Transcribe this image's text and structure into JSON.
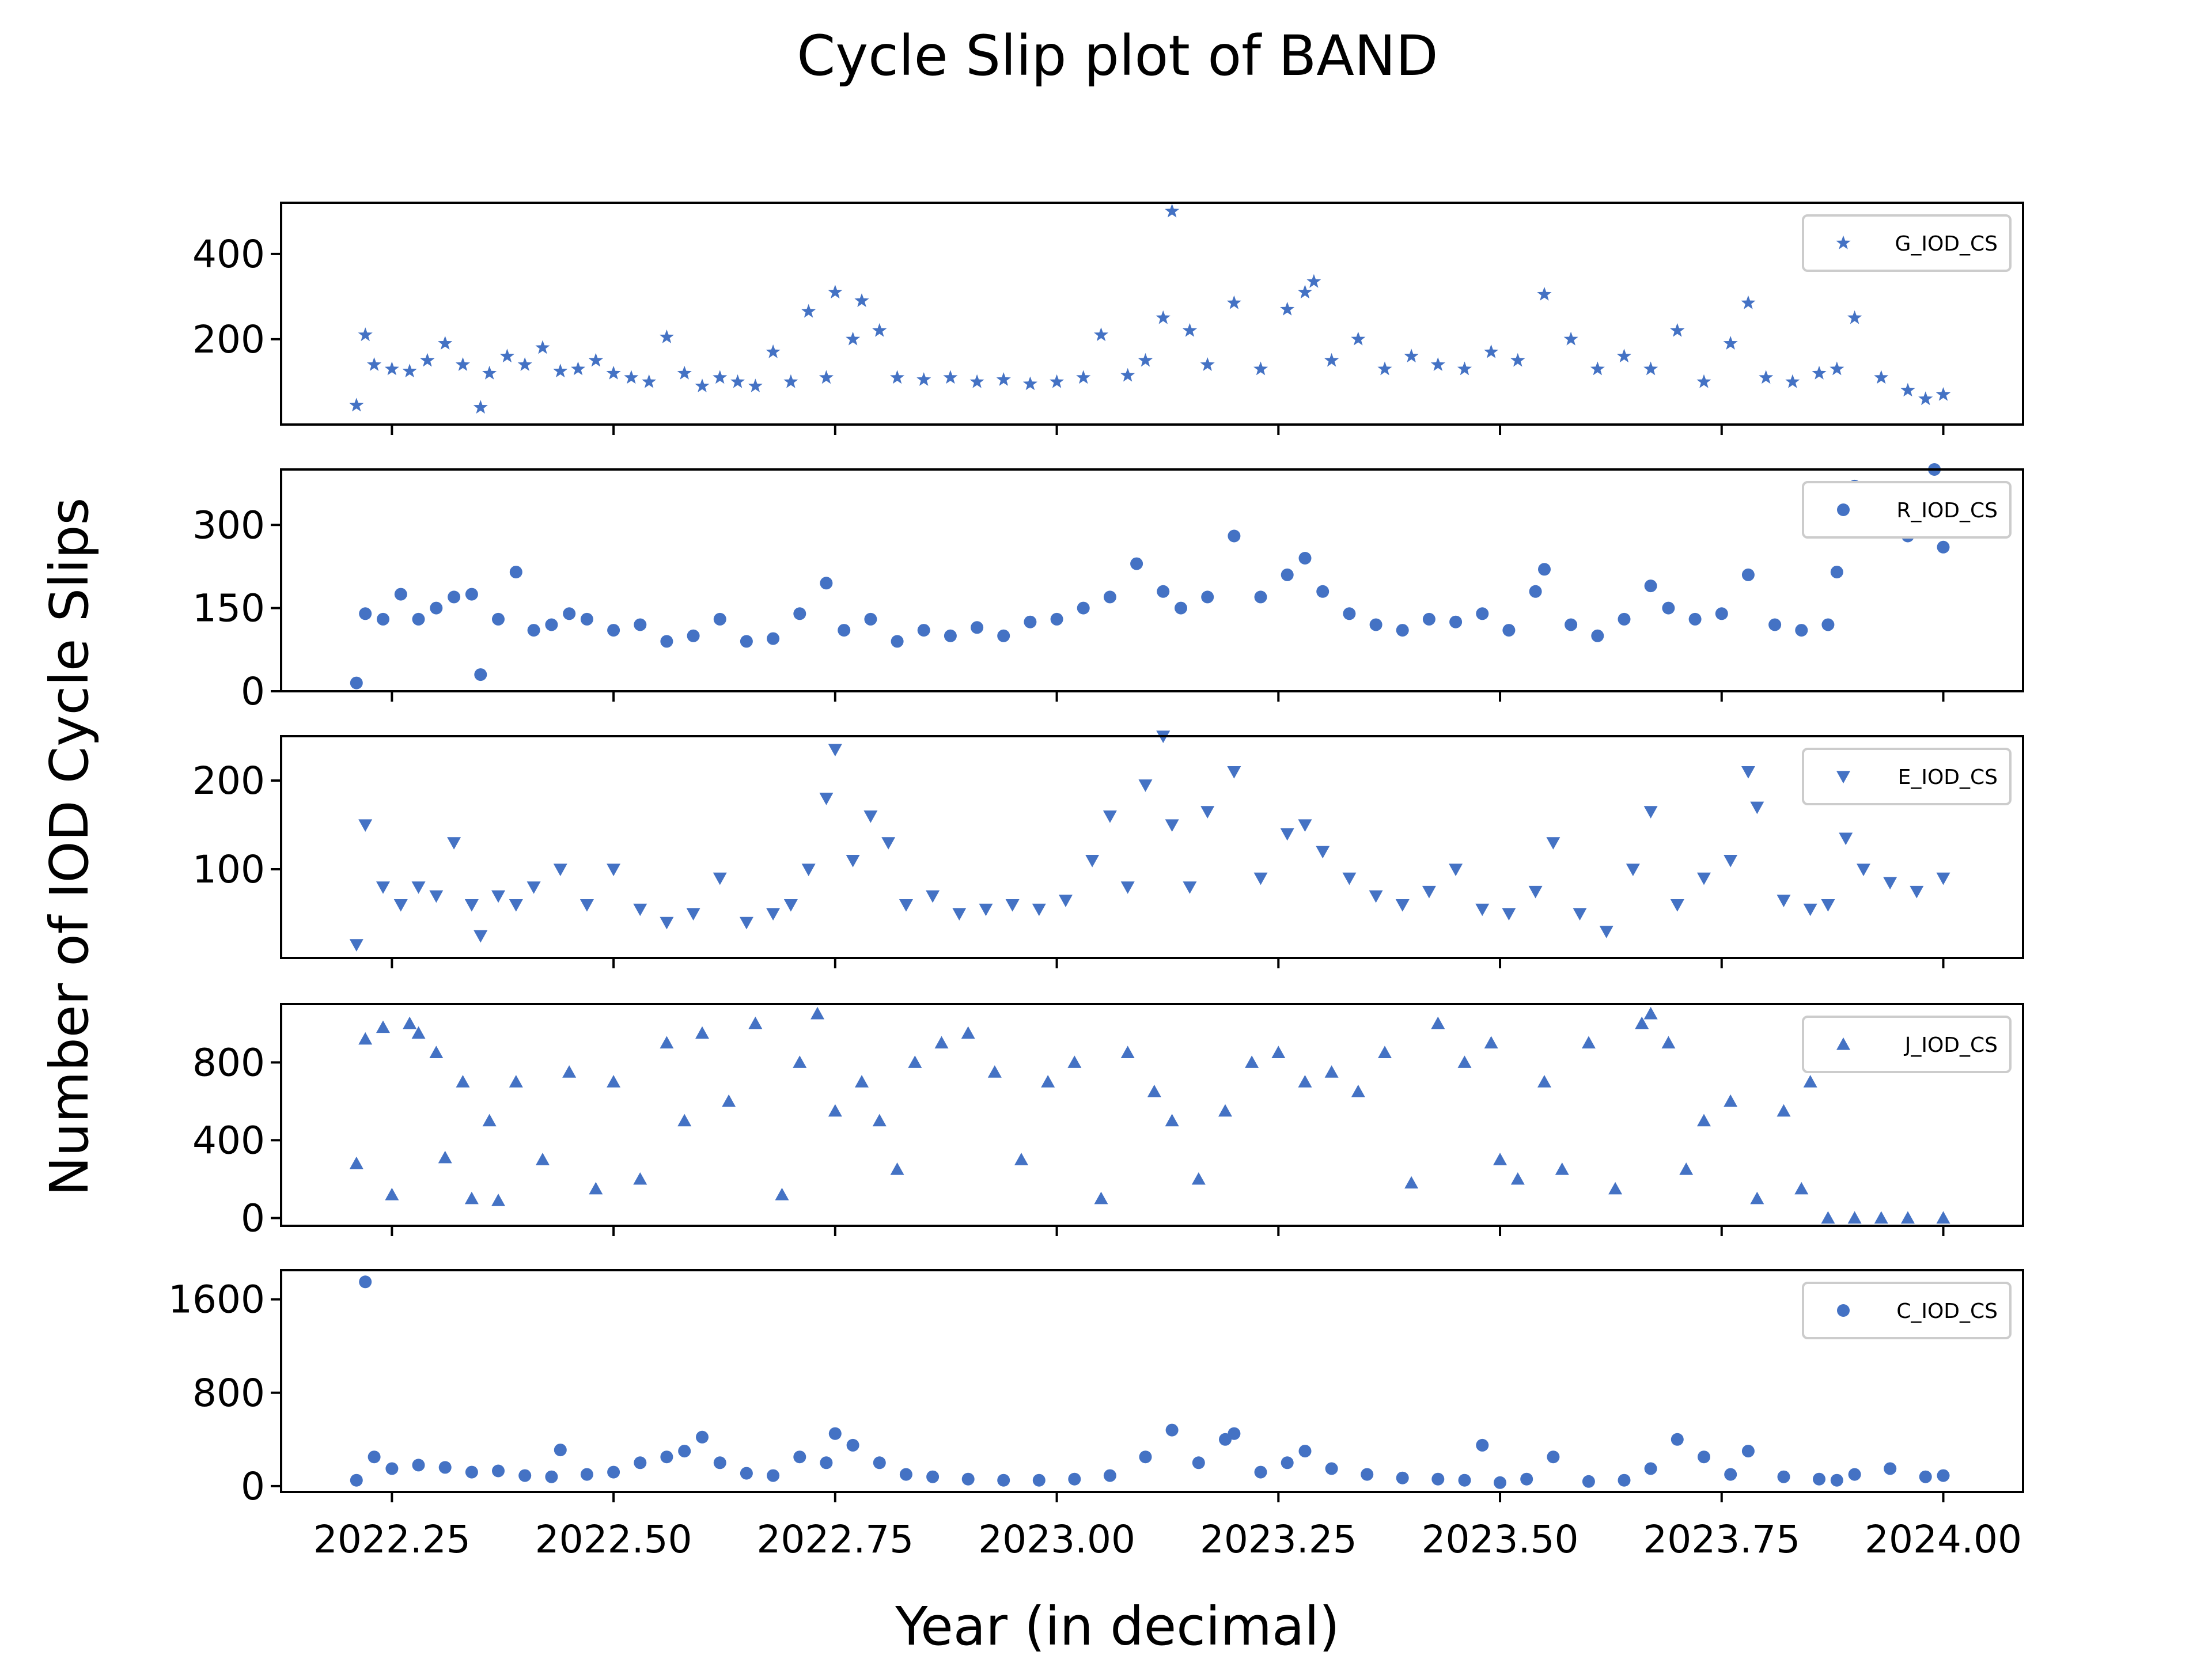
{
  "chart_data": {
    "type": "scatter",
    "title": "Cycle Slip plot of BAND",
    "xlabel": "Year (in decimal)",
    "ylabel": "Number of IOD Cycle Slips",
    "xlim": [
      2022.125,
      2024.09
    ],
    "x_ticks": [
      2022.25,
      2022.5,
      2022.75,
      2023.0,
      2023.25,
      2023.5,
      2023.75,
      2024.0
    ],
    "x_tick_labels": [
      "2022.25",
      "2022.50",
      "2022.75",
      "2023.00",
      "2023.25",
      "2023.50",
      "2023.75",
      "2024.00"
    ],
    "color": "#4472c4",
    "series": [
      {
        "name": "G_IOD_CS",
        "marker": "star",
        "ylim": [
          0,
          520
        ],
        "yticks": [
          200,
          400
        ],
        "ytick_labels": [
          "200",
          "400"
        ],
        "legend": "top-right",
        "x": [
          2022.21,
          2022.22,
          2022.23,
          2022.25,
          2022.27,
          2022.29,
          2022.31,
          2022.33,
          2022.35,
          2022.36,
          2022.38,
          2022.4,
          2022.42,
          2022.44,
          2022.46,
          2022.48,
          2022.5,
          2022.52,
          2022.54,
          2022.56,
          2022.58,
          2022.6,
          2022.62,
          2022.64,
          2022.66,
          2022.68,
          2022.7,
          2022.72,
          2022.74,
          2022.75,
          2022.77,
          2022.78,
          2022.8,
          2022.82,
          2022.85,
          2022.88,
          2022.91,
          2022.94,
          2022.97,
          2023.0,
          2023.03,
          2023.05,
          2023.08,
          2023.1,
          2023.12,
          2023.13,
          2023.15,
          2023.17,
          2023.2,
          2023.23,
          2023.26,
          2023.28,
          2023.29,
          2023.31,
          2023.34,
          2023.37,
          2023.4,
          2023.43,
          2023.46,
          2023.49,
          2023.52,
          2023.55,
          2023.58,
          2023.61,
          2023.64,
          2023.67,
          2023.7,
          2023.73,
          2023.76,
          2023.78,
          2023.8,
          2023.83,
          2023.86,
          2023.88,
          2023.9,
          2023.93,
          2023.96,
          2023.98,
          2024.0
        ],
        "y": [
          45,
          210,
          140,
          130,
          125,
          150,
          190,
          140,
          40,
          120,
          160,
          140,
          180,
          125,
          130,
          150,
          120,
          110,
          100,
          205,
          120,
          90,
          110,
          100,
          90,
          170,
          100,
          265,
          110,
          310,
          200,
          290,
          220,
          110,
          105,
          110,
          100,
          105,
          95,
          100,
          110,
          210,
          115,
          150,
          250,
          500,
          220,
          140,
          285,
          130,
          270,
          310,
          335,
          150,
          200,
          130,
          160,
          140,
          130,
          170,
          150,
          305,
          200,
          130,
          160,
          130,
          220,
          100,
          190,
          285,
          110,
          100,
          120,
          130,
          250,
          110,
          80,
          60,
          70
        ]
      },
      {
        "name": "R_IOD_CS",
        "marker": "circle",
        "ylim": [
          0,
          400
        ],
        "yticks": [
          0,
          150,
          300
        ],
        "ytick_labels": [
          "0",
          "150",
          "300"
        ],
        "legend": "top-right",
        "x": [
          2022.21,
          2022.22,
          2022.24,
          2022.26,
          2022.28,
          2022.3,
          2022.32,
          2022.34,
          2022.35,
          2022.37,
          2022.39,
          2022.41,
          2022.43,
          2022.45,
          2022.47,
          2022.5,
          2022.53,
          2022.56,
          2022.59,
          2022.62,
          2022.65,
          2022.68,
          2022.71,
          2022.74,
          2022.76,
          2022.79,
          2022.82,
          2022.85,
          2022.88,
          2022.91,
          2022.94,
          2022.97,
          2023.0,
          2023.03,
          2023.06,
          2023.09,
          2023.12,
          2023.14,
          2023.17,
          2023.2,
          2023.23,
          2023.26,
          2023.28,
          2023.3,
          2023.33,
          2023.36,
          2023.39,
          2023.42,
          2023.45,
          2023.48,
          2023.51,
          2023.54,
          2023.55,
          2023.58,
          2023.61,
          2023.64,
          2023.67,
          2023.69,
          2023.72,
          2023.75,
          2023.78,
          2023.81,
          2023.84,
          2023.87,
          2023.88,
          2023.89,
          2023.9,
          2023.92,
          2023.94,
          2023.96,
          2023.98,
          2023.99,
          2024.0
        ],
        "y": [
          15,
          140,
          130,
          175,
          130,
          150,
          170,
          175,
          30,
          130,
          215,
          110,
          120,
          140,
          130,
          110,
          120,
          90,
          100,
          130,
          90,
          95,
          140,
          195,
          110,
          130,
          90,
          110,
          100,
          115,
          100,
          125,
          130,
          150,
          170,
          230,
          180,
          150,
          170,
          280,
          170,
          210,
          240,
          180,
          140,
          120,
          110,
          130,
          125,
          140,
          110,
          180,
          220,
          120,
          100,
          130,
          190,
          150,
          130,
          140,
          210,
          120,
          110,
          120,
          215,
          290,
          370,
          300,
          320,
          280,
          300,
          400,
          260
        ]
      },
      {
        "name": "E_IOD_CS",
        "marker": "triangle-down",
        "ylim": [
          0,
          250
        ],
        "yticks": [
          100,
          200
        ],
        "ytick_labels": [
          "100",
          "200"
        ],
        "legend": "top-right",
        "x": [
          2022.21,
          2022.22,
          2022.24,
          2022.26,
          2022.28,
          2022.3,
          2022.32,
          2022.34,
          2022.35,
          2022.37,
          2022.39,
          2022.41,
          2022.44,
          2022.47,
          2022.5,
          2022.53,
          2022.56,
          2022.59,
          2022.62,
          2022.65,
          2022.68,
          2022.7,
          2022.72,
          2022.74,
          2022.75,
          2022.77,
          2022.79,
          2022.81,
          2022.83,
          2022.86,
          2022.89,
          2022.92,
          2022.95,
          2022.98,
          2023.01,
          2023.04,
          2023.06,
          2023.08,
          2023.1,
          2023.12,
          2023.13,
          2023.15,
          2023.17,
          2023.2,
          2023.23,
          2023.26,
          2023.28,
          2023.3,
          2023.33,
          2023.36,
          2023.39,
          2023.42,
          2023.45,
          2023.48,
          2023.51,
          2023.54,
          2023.56,
          2023.59,
          2023.62,
          2023.65,
          2023.67,
          2023.7,
          2023.73,
          2023.76,
          2023.78,
          2023.79,
          2023.82,
          2023.85,
          2023.87,
          2023.89,
          2023.91,
          2023.94,
          2023.97,
          2024.0
        ],
        "y": [
          15,
          150,
          80,
          60,
          80,
          70,
          130,
          60,
          25,
          70,
          60,
          80,
          100,
          60,
          100,
          55,
          40,
          50,
          90,
          40,
          50,
          60,
          100,
          180,
          235,
          110,
          160,
          130,
          60,
          70,
          50,
          55,
          60,
          55,
          65,
          110,
          160,
          80,
          195,
          250,
          150,
          80,
          165,
          210,
          90,
          140,
          150,
          120,
          90,
          70,
          60,
          75,
          100,
          55,
          50,
          75,
          130,
          50,
          30,
          100,
          165,
          60,
          90,
          110,
          210,
          170,
          65,
          55,
          60,
          135,
          100,
          85,
          75,
          90
        ]
      },
      {
        "name": "J_IOD_CS",
        "marker": "triangle-up",
        "ylim": [
          -40,
          1100
        ],
        "yticks": [
          0,
          400,
          800
        ],
        "ytick_labels": [
          "0",
          "400",
          "800"
        ],
        "legend": "top-right",
        "x": [
          2022.21,
          2022.22,
          2022.24,
          2022.25,
          2022.27,
          2022.28,
          2022.3,
          2022.31,
          2022.33,
          2022.34,
          2022.36,
          2022.37,
          2022.39,
          2022.42,
          2022.45,
          2022.48,
          2022.5,
          2022.53,
          2022.56,
          2022.58,
          2022.6,
          2022.63,
          2022.66,
          2022.69,
          2022.71,
          2022.73,
          2022.75,
          2022.78,
          2022.8,
          2022.82,
          2022.84,
          2022.87,
          2022.9,
          2022.93,
          2022.96,
          2022.99,
          2023.02,
          2023.05,
          2023.08,
          2023.11,
          2023.13,
          2023.16,
          2023.19,
          2023.22,
          2023.25,
          2023.28,
          2023.31,
          2023.34,
          2023.37,
          2023.4,
          2023.43,
          2023.46,
          2023.49,
          2023.5,
          2023.52,
          2023.55,
          2023.57,
          2023.6,
          2023.63,
          2023.66,
          2023.67,
          2023.69,
          2023.71,
          2023.73,
          2023.76,
          2023.79,
          2023.82,
          2023.84,
          2023.85,
          2023.87,
          2023.9,
          2023.93,
          2023.96,
          2024.0
        ],
        "y": [
          280,
          920,
          980,
          120,
          1000,
          950,
          850,
          310,
          700,
          100,
          500,
          90,
          700,
          300,
          750,
          150,
          700,
          200,
          900,
          500,
          950,
          600,
          1000,
          120,
          800,
          1050,
          550,
          700,
          500,
          250,
          800,
          900,
          950,
          750,
          300,
          700,
          800,
          100,
          850,
          650,
          500,
          200,
          550,
          800,
          850,
          700,
          750,
          650,
          850,
          180,
          1000,
          800,
          900,
          300,
          200,
          700,
          250,
          900,
          150,
          1000,
          1050,
          900,
          250,
          500,
          600,
          100,
          550,
          150,
          700,
          0,
          0,
          0,
          0,
          0
        ]
      },
      {
        "name": "C_IOD_CS",
        "marker": "circle",
        "ylim": [
          -50,
          1850
        ],
        "yticks": [
          0,
          800,
          1600
        ],
        "ytick_labels": [
          "0",
          "800",
          "1600"
        ],
        "legend": "top-right",
        "x": [
          2022.21,
          2022.22,
          2022.23,
          2022.25,
          2022.28,
          2022.31,
          2022.34,
          2022.37,
          2022.4,
          2022.43,
          2022.44,
          2022.47,
          2022.5,
          2022.53,
          2022.56,
          2022.58,
          2022.6,
          2022.62,
          2022.65,
          2022.68,
          2022.71,
          2022.74,
          2022.75,
          2022.77,
          2022.8,
          2022.83,
          2022.86,
          2022.9,
          2022.94,
          2022.98,
          2023.02,
          2023.06,
          2023.1,
          2023.13,
          2023.16,
          2023.19,
          2023.2,
          2023.23,
          2023.26,
          2023.28,
          2023.31,
          2023.35,
          2023.39,
          2023.43,
          2023.46,
          2023.48,
          2023.5,
          2023.53,
          2023.56,
          2023.6,
          2023.64,
          2023.67,
          2023.7,
          2023.73,
          2023.76,
          2023.78,
          2023.82,
          2023.86,
          2023.88,
          2023.9,
          2023.94,
          2023.98,
          2024.0
        ],
        "y": [
          50,
          1750,
          250,
          150,
          180,
          160,
          120,
          130,
          90,
          80,
          310,
          100,
          120,
          200,
          250,
          300,
          420,
          200,
          110,
          90,
          250,
          200,
          450,
          350,
          200,
          100,
          80,
          60,
          50,
          50,
          60,
          90,
          250,
          480,
          200,
          400,
          450,
          120,
          200,
          300,
          150,
          100,
          70,
          60,
          50,
          350,
          30,
          60,
          250,
          40,
          50,
          150,
          400,
          250,
          100,
          300,
          80,
          60,
          50,
          100,
          150,
          80,
          90
        ]
      }
    ]
  }
}
